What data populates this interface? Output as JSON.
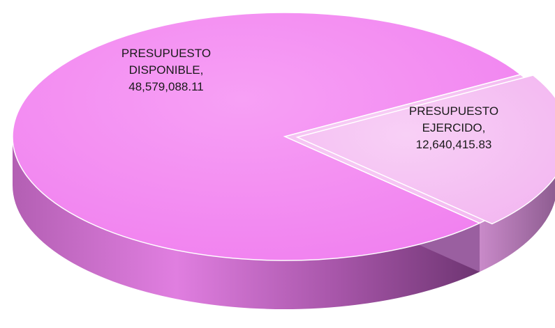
{
  "chart_data": {
    "type": "pie",
    "style": "3d",
    "slices": [
      {
        "label": "PRESUPUESTO DISPONIBLE",
        "value": 48579088.11,
        "value_text": "48,579,088.11",
        "color": "#f48cf2"
      },
      {
        "label": "PRESUPUESTO EJERCIDO",
        "value": 12640415.83,
        "value_text": "12,640,415.83",
        "color": "#f6c3f4"
      }
    ],
    "legend": "none"
  }
}
